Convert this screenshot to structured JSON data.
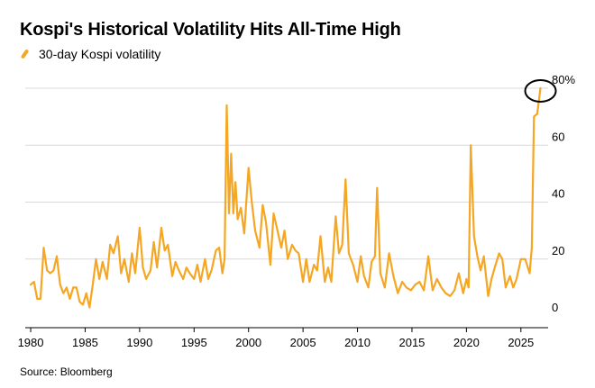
{
  "title": "Kospi's Historical Volatility Hits All-Time High",
  "source": "Source: Bloomberg",
  "colors": {
    "line": "#f5a623",
    "grid": "#d9d9d9",
    "axis": "#000000",
    "annotation": "#000000"
  },
  "chart_data": {
    "type": "line",
    "title": "Kospi's Historical Volatility Hits All-Time High",
    "xlabel": "",
    "ylabel": "",
    "xlim": [
      1979.5,
      2027.5
    ],
    "ylim": [
      0,
      80
    ],
    "grid": true,
    "legend_position": "top-left",
    "x_ticks": [
      1980,
      1985,
      1990,
      1995,
      2000,
      2005,
      2010,
      2015,
      2020,
      2025
    ],
    "x_tick_labels": [
      "1980",
      "1985",
      "1990",
      "1995",
      "2000",
      "2005",
      "2010",
      "2015",
      "2020",
      "2025"
    ],
    "y_ticks": [
      0,
      20,
      40,
      60,
      80
    ],
    "y_tick_labels": [
      "0",
      "20",
      "40",
      "60",
      "80%"
    ],
    "annotation": "circle around latest value",
    "series": [
      {
        "name": "30-day Kospi volatility",
        "x": [
          1980.0,
          1980.3,
          1980.6,
          1980.9,
          1981.2,
          1981.5,
          1981.8,
          1982.1,
          1982.4,
          1982.7,
          1983.0,
          1983.3,
          1983.6,
          1983.9,
          1984.2,
          1984.5,
          1984.8,
          1985.1,
          1985.4,
          1985.7,
          1986.0,
          1986.3,
          1986.6,
          1987.0,
          1987.3,
          1987.6,
          1988.0,
          1988.3,
          1988.6,
          1989.0,
          1989.3,
          1989.6,
          1990.0,
          1990.3,
          1990.6,
          1991.0,
          1991.3,
          1991.6,
          1992.0,
          1992.3,
          1992.6,
          1993.0,
          1993.3,
          1993.6,
          1994.0,
          1994.3,
          1994.6,
          1995.0,
          1995.3,
          1995.6,
          1996.0,
          1996.3,
          1996.6,
          1997.0,
          1997.3,
          1997.6,
          1997.8,
          1998.0,
          1998.2,
          1998.4,
          1998.6,
          1998.8,
          1999.0,
          1999.3,
          1999.6,
          2000.0,
          2000.3,
          2000.6,
          2001.0,
          2001.3,
          2001.6,
          2002.0,
          2002.3,
          2002.6,
          2003.0,
          2003.3,
          2003.6,
          2004.0,
          2004.3,
          2004.6,
          2005.0,
          2005.3,
          2005.6,
          2006.0,
          2006.3,
          2006.6,
          2007.0,
          2007.3,
          2007.6,
          2008.0,
          2008.3,
          2008.6,
          2008.9,
          2009.2,
          2009.6,
          2010.0,
          2010.3,
          2010.6,
          2011.0,
          2011.3,
          2011.6,
          2011.8,
          2012.1,
          2012.5,
          2012.9,
          2013.3,
          2013.7,
          2014.1,
          2014.5,
          2014.9,
          2015.3,
          2015.7,
          2016.1,
          2016.5,
          2016.9,
          2017.3,
          2017.7,
          2018.1,
          2018.5,
          2018.9,
          2019.3,
          2019.7,
          2020.0,
          2020.2,
          2020.4,
          2020.7,
          2021.0,
          2021.3,
          2021.6,
          2022.0,
          2022.3,
          2022.6,
          2023.0,
          2023.3,
          2023.6,
          2024.0,
          2024.3,
          2024.6,
          2025.0,
          2025.4,
          2025.8,
          2026.0,
          2026.2,
          2026.5,
          2026.8
        ],
        "y": [
          11,
          12,
          6,
          6,
          24,
          16,
          15,
          16,
          21,
          11,
          8,
          10,
          6,
          10,
          10,
          5,
          4,
          8,
          3,
          11,
          20,
          13,
          19,
          13,
          25,
          22,
          28,
          15,
          20,
          12,
          22,
          15,
          31,
          17,
          13,
          16,
          26,
          17,
          31,
          23,
          25,
          14,
          19,
          16,
          13,
          17,
          15,
          13,
          18,
          12,
          20,
          13,
          16,
          23,
          24,
          15,
          20,
          74,
          36,
          57,
          36,
          47,
          34,
          38,
          29,
          52,
          40,
          30,
          24,
          39,
          33,
          18,
          36,
          31,
          24,
          30,
          20,
          25,
          23,
          22,
          12,
          20,
          12,
          18,
          16,
          28,
          12,
          17,
          12,
          35,
          22,
          25,
          48,
          22,
          18,
          12,
          21,
          14,
          10,
          19,
          21,
          45,
          15,
          10,
          22,
          14,
          8,
          12,
          10,
          9,
          11,
          12,
          9,
          21,
          9,
          13,
          10,
          8,
          7,
          9,
          15,
          8,
          13,
          10,
          60,
          28,
          21,
          16,
          21,
          7,
          13,
          17,
          22,
          20,
          10,
          14,
          10,
          13,
          20,
          20,
          15,
          24,
          70,
          71,
          80
        ]
      }
    ]
  }
}
